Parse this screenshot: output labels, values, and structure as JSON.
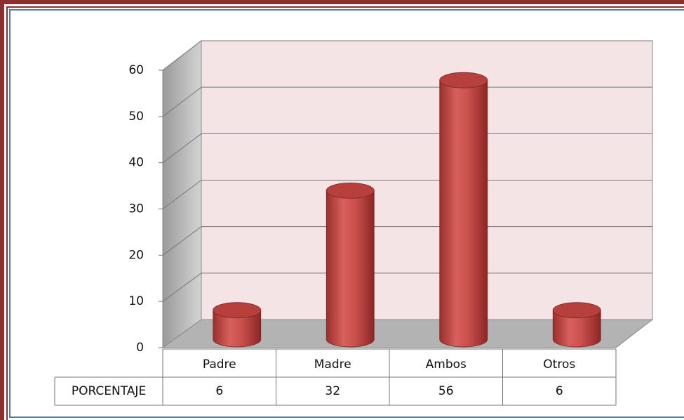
{
  "chart_data": {
    "type": "bar",
    "categories": [
      "Padre",
      "Madre",
      "Ambos",
      "Otros"
    ],
    "series": [
      {
        "name": "PORCENTAJE",
        "color": "#c0504d",
        "values": [
          6,
          32,
          56,
          6
        ]
      }
    ],
    "ylim": [
      0,
      60
    ],
    "yticks": [
      0,
      10,
      20,
      30,
      40,
      50,
      60
    ],
    "grid": true
  }
}
